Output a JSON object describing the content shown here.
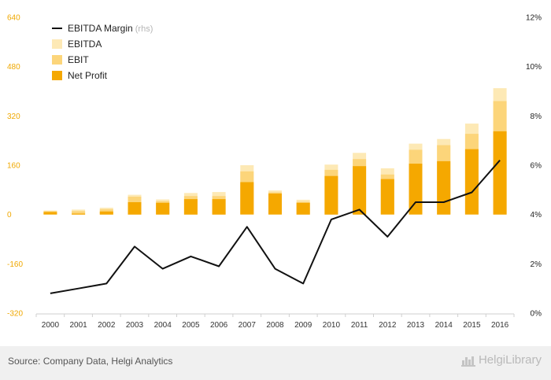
{
  "chart_data": {
    "type": "bar",
    "categories": [
      "2000",
      "2001",
      "2002",
      "2003",
      "2004",
      "2005",
      "2006",
      "2007",
      "2008",
      "2009",
      "2010",
      "2011",
      "2012",
      "2013",
      "2014",
      "2015",
      "2016"
    ],
    "series": [
      {
        "name": "Net Profit",
        "axis": "left",
        "values": [
          8,
          3,
          10,
          40,
          38,
          50,
          50,
          105,
          68,
          38,
          125,
          157,
          115,
          165,
          173,
          212,
          270
        ],
        "color": "#f5a800"
      },
      {
        "name": "EBIT",
        "axis": "left",
        "values": [
          11,
          11,
          17,
          58,
          43,
          60,
          60,
          140,
          72,
          41,
          145,
          180,
          130,
          210,
          225,
          262,
          368
        ],
        "color": "#fcd57a"
      },
      {
        "name": "EBITDA",
        "axis": "left",
        "values": [
          13,
          16,
          22,
          64,
          49,
          70,
          73,
          160,
          78,
          48,
          162,
          200,
          150,
          230,
          245,
          295,
          410
        ],
        "color": "#fde9b5"
      },
      {
        "name": "EBITDA Margin",
        "note": "(rhs)",
        "axis": "right",
        "type": "line",
        "values": [
          0.8,
          1.0,
          1.2,
          2.7,
          1.8,
          2.3,
          1.9,
          3.5,
          1.8,
          1.2,
          3.8,
          4.2,
          3.1,
          4.5,
          4.5,
          4.9,
          6.2
        ],
        "color": "#111111"
      }
    ],
    "y_left": {
      "ticks": [
        "640",
        "480",
        "320",
        "160",
        "0",
        "-160",
        "-320"
      ],
      "min": -320,
      "max": 640
    },
    "y_right": {
      "ticks": [
        "12%",
        "10%",
        "8%",
        "6%",
        "4%",
        "2%",
        "0%"
      ],
      "min": 0,
      "max": 12
    },
    "legend_placement": "top-left",
    "grid": false
  },
  "footer": {
    "source": "Source: Company Data, Helgi Analytics",
    "logo_text": "HelgiLibrary"
  }
}
